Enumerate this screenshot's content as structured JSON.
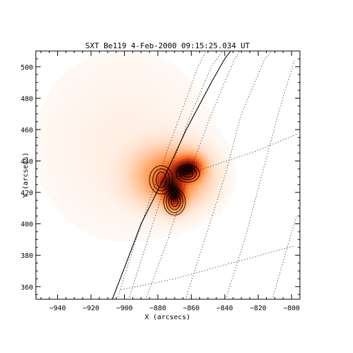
{
  "chart_data": {
    "type": "heatmap",
    "title": "SXT Be119  4-Feb-2000 09:15:25.034 UT",
    "xlabel": "X (arcsecs)",
    "ylabel": "Y (arcsecs)",
    "xlim": [
      -953,
      -795
    ],
    "ylim": [
      352,
      510
    ],
    "xticks": [
      -940,
      -920,
      -900,
      -880,
      -860,
      -840,
      -820,
      -800
    ],
    "yticks": [
      360,
      380,
      400,
      420,
      440,
      460,
      480,
      500
    ],
    "colormap": "white-orange-red-black",
    "intensity_blobs": [
      {
        "x": -872,
        "y": 430,
        "sx": 14,
        "sy": 12,
        "amp": 0.45
      },
      {
        "x": -870,
        "y": 418,
        "sx": 4,
        "sy": 6,
        "amp": 0.75
      },
      {
        "x": -860,
        "y": 436,
        "sx": 5,
        "sy": 5,
        "amp": 0.55
      },
      {
        "x": -866,
        "y": 434,
        "sx": 5,
        "sy": 4,
        "amp": 0.35
      },
      {
        "x": -876,
        "y": 426,
        "sx": 4,
        "sy": 4,
        "amp": 0.3
      },
      {
        "x": -900,
        "y": 450,
        "sx": 40,
        "sy": 45,
        "amp": 0.05
      }
    ],
    "contours": [
      {
        "region": "west",
        "cx": -878,
        "cy": 428,
        "rx": [
          3,
          5,
          7
        ],
        "ry": [
          5,
          7,
          9
        ]
      },
      {
        "region": "north-east",
        "cx": -862,
        "cy": 432,
        "rx": [
          3,
          5,
          7
        ],
        "ry": [
          2.5,
          4,
          5.5
        ]
      },
      {
        "region": "south",
        "cx": -870,
        "cy": 414,
        "rx": [
          2,
          3.5,
          5,
          6.5
        ],
        "ry": [
          3,
          5,
          7,
          8.5
        ]
      }
    ],
    "limb": [
      [
        -908,
        350
      ],
      [
        -900,
        372
      ],
      [
        -890,
        400
      ],
      [
        -876,
        430
      ],
      [
        -863,
        460
      ],
      [
        -848,
        490
      ],
      [
        -840,
        505
      ],
      [
        -835,
        512
      ]
    ],
    "grid_meridians": [
      [
        [
          -905,
          350
        ],
        [
          -893,
          390
        ],
        [
          -880,
          430
        ],
        [
          -868,
          465
        ],
        [
          -856,
          500
        ],
        [
          -850,
          512
        ]
      ],
      [
        [
          -898,
          350
        ],
        [
          -886,
          390
        ],
        [
          -874,
          430
        ],
        [
          -862,
          465
        ],
        [
          -848,
          500
        ],
        [
          -840,
          512
        ]
      ],
      [
        [
          -888,
          350
        ],
        [
          -874,
          390
        ],
        [
          -862,
          430
        ],
        [
          -848,
          470
        ],
        [
          -834,
          505
        ],
        [
          -830,
          512
        ]
      ],
      [
        [
          -864,
          350
        ],
        [
          -852,
          390
        ],
        [
          -840,
          430
        ],
        [
          -830,
          470
        ],
        [
          -816,
          505
        ],
        [
          -810,
          512
        ]
      ],
      [
        [
          -840,
          350
        ],
        [
          -828,
          390
        ],
        [
          -818,
          430
        ],
        [
          -808,
          470
        ],
        [
          -798,
          505
        ]
      ],
      [
        [
          -812,
          350
        ],
        [
          -804,
          380
        ],
        [
          -797,
          405
        ]
      ]
    ],
    "grid_parallels": [
      [
        [
          -902,
          358
        ],
        [
          -870,
          365
        ],
        [
          -836,
          375
        ],
        [
          -798,
          386
        ]
      ],
      [
        [
          -880,
          426
        ],
        [
          -850,
          436
        ],
        [
          -822,
          446
        ],
        [
          -797,
          457
        ]
      ]
    ]
  }
}
